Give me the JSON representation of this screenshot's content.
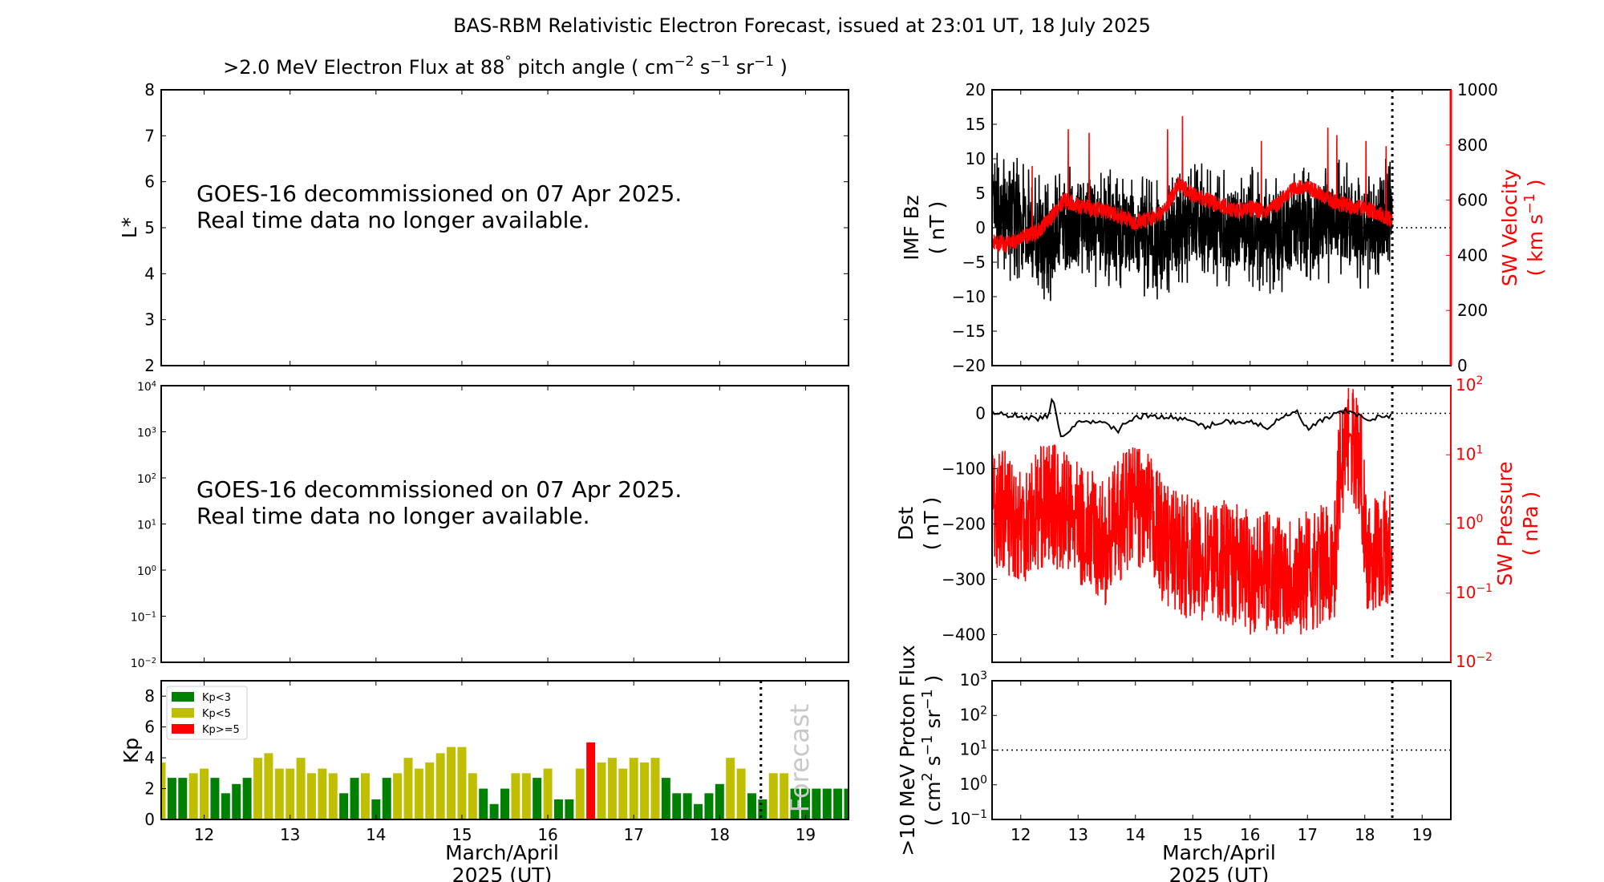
{
  "title": "BAS-RBM Relativistic Electron Forecast, issued at 23:01 UT, 18 July 2025",
  "left_title": [
    {
      "t": ">2.0 MeV Electron Flux at 88",
      "sup": false
    },
    {
      "t": "°",
      "sup": true
    },
    {
      "t": "  pitch angle ( cm",
      "sup": false
    },
    {
      "t": "−2",
      "sup": true
    },
    {
      "t": " s",
      "sup": false
    },
    {
      "t": "−1",
      "sup": true
    },
    {
      "t": " sr",
      "sup": false
    },
    {
      "t": "−1",
      "sup": true
    },
    {
      "t": "  )",
      "sup": false
    }
  ],
  "notice": {
    "line1": "GOES-16 decommissioned on 07 Apr 2025.",
    "line2": "Real time data no longer available."
  },
  "xlabel": {
    "line1": "March/April",
    "line2": "2025 (UT)"
  },
  "colors": {
    "kp_low": "#008000",
    "kp_mid": "#bfbf00",
    "kp_high": "#ff0000",
    "solar_wind": "#ff0000",
    "black": "#000000"
  },
  "chart_data": [
    {
      "id": "lstar",
      "type": "heatmap",
      "ylabel": "L*",
      "ylim": [
        2,
        8
      ],
      "yticks": [
        2,
        3,
        4,
        5,
        6,
        7,
        8
      ],
      "xlim": [
        11.5,
        19.5
      ],
      "data": "none"
    },
    {
      "id": "flux",
      "type": "line",
      "yscale": "log",
      "ylim_exp": [
        -2,
        4
      ],
      "yticks_exp": [
        -2,
        -1,
        0,
        1,
        2,
        3,
        4
      ],
      "xlim": [
        11.5,
        19.5
      ],
      "data": "none"
    },
    {
      "id": "kp",
      "type": "bar",
      "ylabel": "Kp",
      "ylim": [
        0,
        9
      ],
      "yticks": [
        0,
        2,
        4,
        6,
        8
      ],
      "xlim": [
        11.5,
        19.5
      ],
      "xticks": [
        12,
        13,
        14,
        15,
        16,
        17,
        18,
        19
      ],
      "start": 11.5,
      "step": 0.125,
      "values": [
        3.7,
        2.7,
        2.7,
        3,
        3.3,
        2.7,
        1.7,
        2.3,
        2.7,
        4,
        4.3,
        3.3,
        3.3,
        4,
        3,
        3.3,
        3,
        1.7,
        2.7,
        3,
        1.3,
        2.7,
        3,
        4,
        3.3,
        3.7,
        4.3,
        4.7,
        4.7,
        3,
        2,
        1,
        2,
        3,
        3,
        2.7,
        3.3,
        1.3,
        1.3,
        3.3,
        5,
        3.7,
        4,
        3.3,
        4,
        3.7,
        4,
        2.7,
        1.7,
        1.7,
        1,
        1.7,
        2.3,
        4,
        3.3,
        1.7,
        1.3,
        3,
        3,
        2,
        2,
        2,
        2,
        2,
        2
      ],
      "legend": [
        {
          "label": "Kp<3"
        },
        {
          "label": "Kp<5"
        },
        {
          "label": "Kp>=5"
        }
      ],
      "legend_position": "top-left",
      "forecast_label": "Forecast",
      "forecast_start": 18.48
    },
    {
      "id": "imf_sw",
      "type": "line",
      "ylabel": [
        "IMF Bz",
        "( nT )"
      ],
      "y2label": [
        "SW Velocity",
        "( km s",
        "−1",
        " )"
      ],
      "ylim": [
        -20,
        20
      ],
      "yticks": [
        -20,
        -15,
        -10,
        -5,
        0,
        5,
        10,
        15,
        20
      ],
      "y2lim": [
        0,
        1000
      ],
      "y2ticks": [
        0,
        200,
        400,
        600,
        800,
        1000
      ],
      "now": 18.48,
      "series": [
        {
          "name": "IMF Bz",
          "x": [
            11.5,
            12,
            12.5,
            13,
            13.5,
            14,
            14.5,
            15,
            15.5,
            16,
            16.5,
            17,
            17.5,
            18,
            18.48
          ],
          "y": [
            2,
            1,
            -2,
            1,
            0,
            -1,
            -2,
            1,
            0,
            0,
            -1,
            0,
            1,
            0,
            2
          ]
        },
        {
          "name": "SW Velocity",
          "x": [
            11.5,
            11.75,
            12,
            12.25,
            12.5,
            12.75,
            13,
            13.25,
            13.5,
            13.75,
            14,
            14.25,
            14.5,
            14.75,
            15,
            15.25,
            15.5,
            15.75,
            16,
            16.25,
            16.5,
            16.75,
            17,
            17.25,
            17.5,
            17.75,
            18,
            18.25,
            18.48
          ],
          "y": [
            450,
            440,
            460,
            480,
            530,
            600,
            580,
            570,
            560,
            540,
            520,
            530,
            560,
            660,
            620,
            600,
            580,
            560,
            570,
            560,
            590,
            640,
            650,
            620,
            590,
            580,
            570,
            550,
            530
          ]
        }
      ]
    },
    {
      "id": "dst_pressure",
      "type": "line",
      "ylabel": [
        "Dst",
        "( nT )"
      ],
      "y2label": [
        "SW Pressure",
        "( nPa )"
      ],
      "ylim": [
        -450,
        50
      ],
      "yticks": [
        -400,
        -300,
        -200,
        -100,
        0
      ],
      "y2lim_exp": [
        -2,
        2
      ],
      "y2ticks_exp": [
        -2,
        -1,
        0,
        1,
        2
      ],
      "series": [
        {
          "name": "Dst",
          "x": [
            11.5,
            12,
            12.3,
            12.5,
            12.55,
            12.7,
            13,
            13.5,
            13.7,
            14,
            14.5,
            15,
            15.2,
            15.5,
            16,
            16.3,
            16.8,
            17,
            17.3,
            17.7,
            18,
            18.48
          ],
          "y": [
            0,
            -5,
            -10,
            -2,
            30,
            -45,
            -15,
            -20,
            -30,
            -5,
            -5,
            -15,
            -25,
            -15,
            -15,
            -25,
            5,
            -30,
            -10,
            5,
            -10,
            -5
          ]
        },
        {
          "name": "SW Pressure",
          "x": [
            11.5,
            12,
            12.5,
            13,
            13.5,
            14,
            14.5,
            15,
            15.5,
            16,
            16.5,
            17,
            17.5,
            17.75,
            18,
            18.48
          ],
          "y": [
            2,
            1,
            2,
            1,
            0.5,
            2,
            0.5,
            0.3,
            0.3,
            0.2,
            0.2,
            0.2,
            0.3,
            20,
            0.4,
            0.4
          ]
        }
      ]
    },
    {
      "id": "proton",
      "type": "line",
      "ylabel": [
        ">10 MeV Proton Flux",
        "( cm",
        "2",
        " s",
        "−1",
        " sr",
        "−1",
        " )"
      ],
      "ylim_exp": [
        -1,
        3
      ],
      "yticks_exp": [
        -1,
        0,
        1,
        2,
        3
      ],
      "threshold": 10,
      "xticks": [
        12,
        13,
        14,
        15,
        16,
        17,
        18,
        19
      ],
      "data": "none"
    }
  ]
}
